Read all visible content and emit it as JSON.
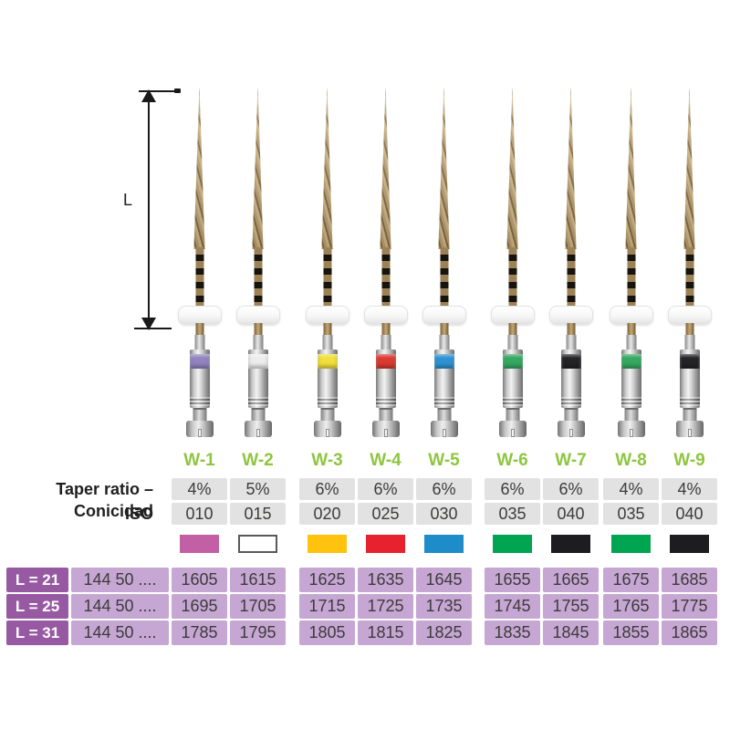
{
  "dimension": {
    "label": "L"
  },
  "labels": {
    "taper": "Taper ratio – Conicidad",
    "iso": "ISO"
  },
  "files": [
    {
      "name": "W-1",
      "taper": "4%",
      "iso": "010",
      "swatch_color": "#c25fa5",
      "swatch_border": "#c25fa5",
      "ring_color": "#9184c0"
    },
    {
      "name": "W-2",
      "taper": "5%",
      "iso": "015",
      "swatch_color": "#ffffff",
      "swatch_border": "#58595b",
      "ring_color": "#ededed"
    },
    {
      "name": "W-3",
      "taper": "6%",
      "iso": "020",
      "swatch_color": "#ffc20e",
      "swatch_border": "#ffc20e",
      "ring_color": "#f2df3c"
    },
    {
      "name": "W-4",
      "taper": "6%",
      "iso": "025",
      "swatch_color": "#e8212e",
      "swatch_border": "#e8212e",
      "ring_color": "#da3a31"
    },
    {
      "name": "W-5",
      "taper": "6%",
      "iso": "030",
      "swatch_color": "#1f8cca",
      "swatch_border": "#1f8cca",
      "ring_color": "#2e92d2"
    },
    {
      "name": "W-6",
      "taper": "6%",
      "iso": "035",
      "swatch_color": "#00a551",
      "swatch_border": "#00a551",
      "ring_color": "#35a861"
    },
    {
      "name": "W-7",
      "taper": "6%",
      "iso": "040",
      "swatch_color": "#1d1d1f",
      "swatch_border": "#1d1d1f",
      "ring_color": "#232326"
    },
    {
      "name": "W-8",
      "taper": "4%",
      "iso": "035",
      "swatch_color": "#00a551",
      "swatch_border": "#00a551",
      "ring_color": "#35a861"
    },
    {
      "name": "W-9",
      "taper": "4%",
      "iso": "040",
      "swatch_color": "#1d1d1f",
      "swatch_border": "#1d1d1f",
      "ring_color": "#232326"
    }
  ],
  "table": {
    "rows": [
      {
        "header": "L = 21",
        "ref": "144 50 ....",
        "values": [
          "1605",
          "1615",
          "1625",
          "1635",
          "1645",
          "1655",
          "1665",
          "1675",
          "1685"
        ]
      },
      {
        "header": "L = 25",
        "ref": "144 50 ....",
        "values": [
          "1695",
          "1705",
          "1715",
          "1725",
          "1735",
          "1745",
          "1755",
          "1765",
          "1775"
        ]
      },
      {
        "header": "L = 31",
        "ref": "144 50 ....",
        "values": [
          "1785",
          "1795",
          "1805",
          "1815",
          "1825",
          "1835",
          "1845",
          "1855",
          "1865"
        ]
      }
    ]
  },
  "colors": {
    "model_label_green": "#8dc63f",
    "spec_cell_gray": "#e2e2e2",
    "table_header_purple": "#9859a3",
    "table_cell_purple": "#c6a6d2",
    "dimension_line": "#1a1a1a",
    "text_dark": "#3c3c3b"
  }
}
